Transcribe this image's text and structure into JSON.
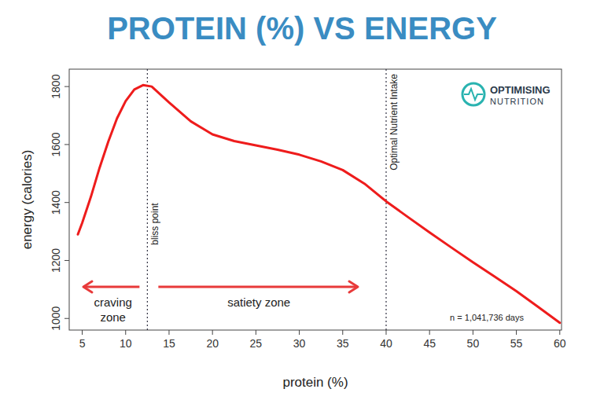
{
  "chart_data": {
    "type": "line",
    "title": "PROTEIN (%) VS ENERGY",
    "x_label": "protein (%)",
    "y_label": "energy (calories)",
    "x": [
      4.5,
      5,
      6,
      7,
      8,
      9,
      10,
      11,
      12,
      13,
      15,
      17.5,
      20,
      22.5,
      25,
      27.5,
      30,
      32.5,
      35,
      37.5,
      40,
      42.5,
      45,
      47.5,
      50,
      52.5,
      55,
      57.5,
      60
    ],
    "series": [
      {
        "name": "energy",
        "color": "#ee1c1c",
        "values": [
          1290,
          1330,
          1420,
          1520,
          1610,
          1690,
          1750,
          1790,
          1805,
          1800,
          1745,
          1680,
          1635,
          1612,
          1597,
          1582,
          1565,
          1542,
          1512,
          1465,
          1404,
          1350,
          1297,
          1245,
          1194,
          1144,
          1094,
          1040,
          985
        ]
      }
    ],
    "xlim": [
      3.5,
      60.2
    ],
    "ylim": [
      960,
      1860
    ],
    "xticks": [
      5,
      10,
      15,
      20,
      25,
      30,
      35,
      40,
      45,
      50,
      55,
      60
    ],
    "yticks": [
      1000,
      1200,
      1400,
      1600,
      1800
    ],
    "grid": false,
    "vlines": [
      {
        "x": 12.5,
        "label": "bliss point"
      },
      {
        "x": 40,
        "label": "Optimal Nutrient Intake"
      }
    ],
    "zones": [
      "craving zone",
      "satiety zone"
    ],
    "annotations": [
      "n = 1,041,736 days"
    ],
    "logo": [
      "OPTIMISING",
      "NUTRITION"
    ]
  }
}
